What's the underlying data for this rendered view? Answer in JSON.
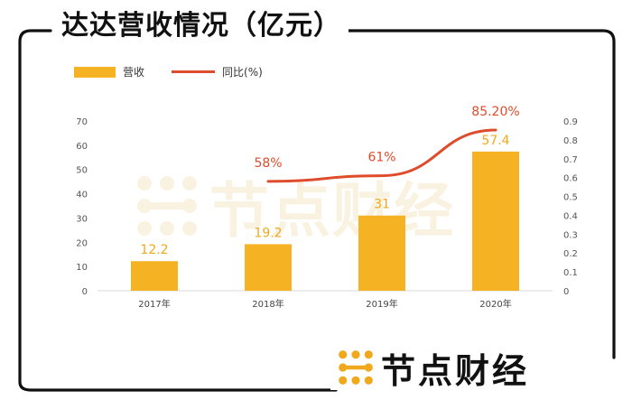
{
  "page_title": "达达营收情况（亿元）",
  "brand": {
    "name": "节点财经"
  },
  "watermark": {
    "text": "节点财经"
  },
  "chart_data": {
    "type": "bar+line",
    "title": "达达营收情况（亿元）",
    "categories": [
      "2017年",
      "2018年",
      "2019年",
      "2020年"
    ],
    "series": [
      {
        "name": "营收",
        "type": "bar",
        "axis": "left",
        "color": "#f5b323",
        "values": [
          12.2,
          19.2,
          31,
          57.4
        ],
        "labels": [
          "12.2",
          "19.2",
          "31",
          "57.4"
        ]
      },
      {
        "name": "同比(%)",
        "type": "line",
        "axis": "right",
        "color": "#de4c2c",
        "values": [
          null,
          0.58,
          0.61,
          0.852
        ],
        "labels": [
          "",
          "58%",
          "61%",
          "85.20%"
        ]
      }
    ],
    "y_left": {
      "min": 0,
      "max": 70,
      "ticks": [
        "0",
        "10",
        "20",
        "30",
        "40",
        "50",
        "60",
        "70"
      ]
    },
    "y_right": {
      "min": 0,
      "max": 0.9,
      "ticks": [
        "0",
        "0.1",
        "0.2",
        "0.3",
        "0.4",
        "0.5",
        "0.6",
        "0.7",
        "0.8",
        "0.9"
      ]
    },
    "legend": [
      "营收",
      "同比(%)"
    ],
    "grid": false
  }
}
